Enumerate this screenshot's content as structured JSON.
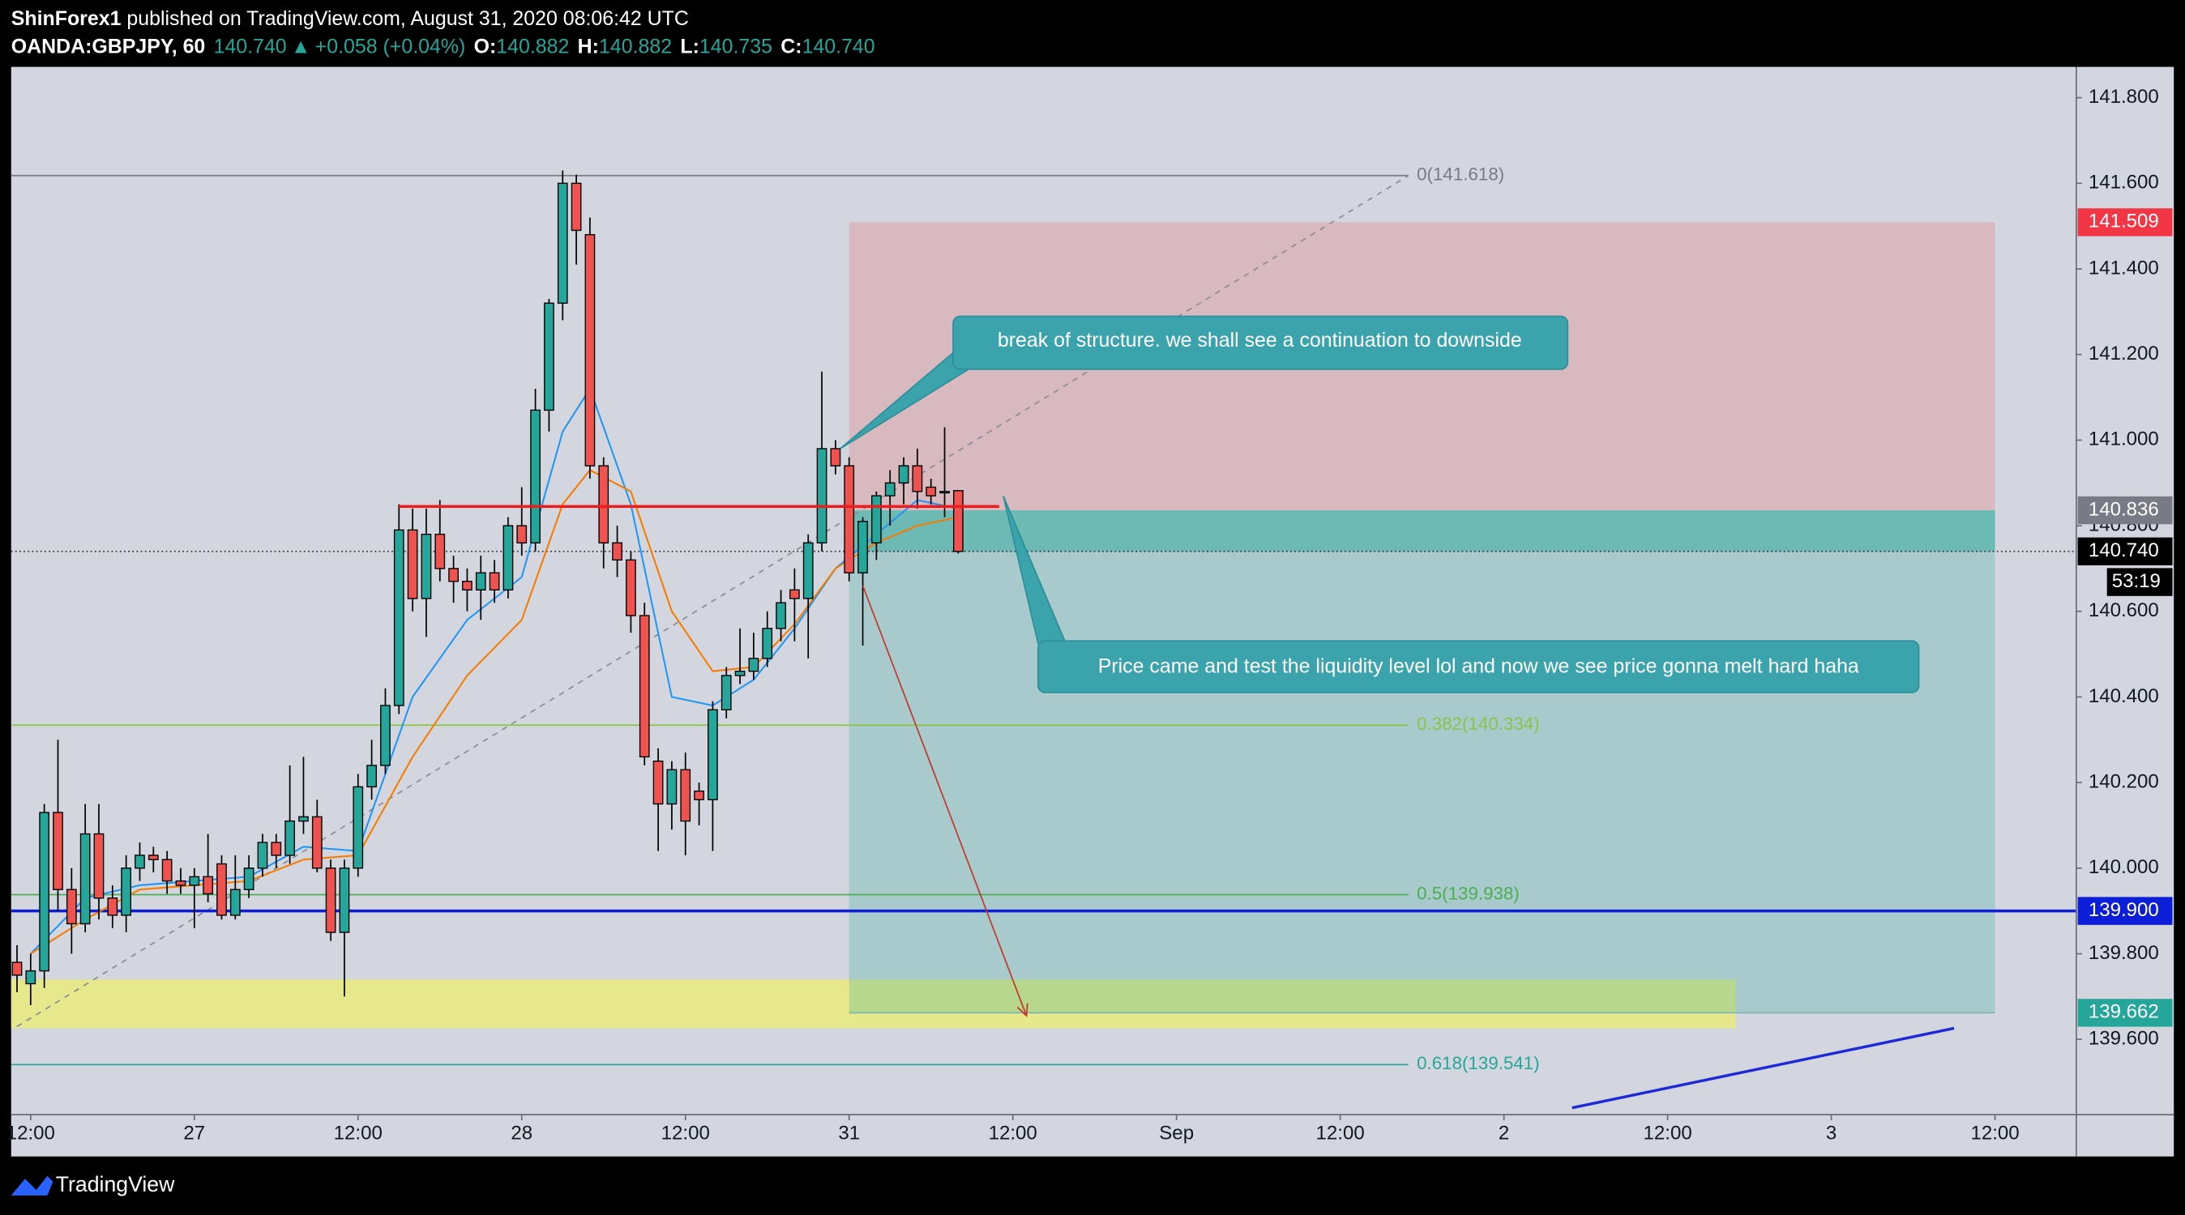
{
  "header": {
    "author": "ShinForex1",
    "published": "published on TradingView.com, August 31, 2020 08:06:42 UTC",
    "symbol": "OANDA:GBPJPY, 60",
    "price": "140.740",
    "arrow": "▲",
    "change": "+0.058 (+0.04%)",
    "ohlc": [
      {
        "label": "O:",
        "value": "140.882"
      },
      {
        "label": "H:",
        "value": "140.882"
      },
      {
        "label": "L:",
        "value": "140.735"
      },
      {
        "label": "C:",
        "value": "140.740"
      }
    ]
  },
  "brand": "TradingView",
  "chart_data": {
    "type": "candlestick",
    "up_color": "#26a69a",
    "down_color": "#ef5350",
    "xlim": [
      -1.43,
      149.96
    ],
    "ylim": [
      139.424,
      141.872
    ],
    "xticks": [
      {
        "value": 0,
        "label": "12:00"
      },
      {
        "value": 12,
        "label": "27"
      },
      {
        "value": 24,
        "label": "12:00"
      },
      {
        "value": 36,
        "label": "28"
      },
      {
        "value": 48,
        "label": "12:00"
      },
      {
        "value": 60,
        "label": "31"
      },
      {
        "value": 72,
        "label": "12:00"
      },
      {
        "value": 84,
        "label": "Sep"
      },
      {
        "value": 96,
        "label": "12:00"
      },
      {
        "value": 108,
        "label": "2"
      },
      {
        "value": 120,
        "label": "12:00"
      },
      {
        "value": 132,
        "label": "3"
      },
      {
        "value": 144,
        "label": "12:00"
      }
    ],
    "yticks": [
      {
        "value": 139.6,
        "label": "139.600"
      },
      {
        "value": 139.8,
        "label": "139.800"
      },
      {
        "value": 140,
        "label": "140.000"
      },
      {
        "value": 140.2,
        "label": "140.200"
      },
      {
        "value": 140.4,
        "label": "140.400"
      },
      {
        "value": 140.6,
        "label": "140.600"
      },
      {
        "value": 140.8,
        "label": "140.800"
      },
      {
        "value": 141,
        "label": "141.000"
      },
      {
        "value": 141.2,
        "label": "141.200"
      },
      {
        "value": 141.4,
        "label": "141.400"
      },
      {
        "value": 141.6,
        "label": "141.600"
      },
      {
        "value": 141.8,
        "label": "141.800"
      }
    ],
    "x": [
      -1,
      0,
      1,
      2,
      3,
      4,
      5,
      6,
      7,
      8,
      9,
      10,
      11,
      12,
      13,
      14,
      15,
      16,
      17,
      18,
      19,
      20,
      21,
      22,
      23,
      24,
      25,
      26,
      27,
      28,
      29,
      30,
      31,
      32,
      33,
      34,
      35,
      36,
      37,
      38,
      39,
      40,
      41,
      42,
      43,
      44,
      45,
      46,
      47,
      48,
      49,
      50,
      51,
      52,
      53,
      54,
      55,
      56,
      57,
      58,
      59,
      60,
      61,
      62,
      63,
      64,
      65,
      66,
      67,
      68
    ],
    "open": [
      139.78,
      139.73,
      139.76,
      140.13,
      139.95,
      139.87,
      140.08,
      139.93,
      139.89,
      140.0,
      140.03,
      140.02,
      139.97,
      139.96,
      139.98,
      140.01,
      139.89,
      139.95,
      140.0,
      140.06,
      140.03,
      140.11,
      140.12,
      140.0,
      139.85,
      140.0,
      140.19,
      140.24,
      140.38,
      140.79,
      140.63,
      140.78,
      140.7,
      140.67,
      140.65,
      140.69,
      140.65,
      140.8,
      140.76,
      141.07,
      141.32,
      141.6,
      141.48,
      140.94,
      140.76,
      140.72,
      140.59,
      140.25,
      140.15,
      140.23,
      140.18,
      140.16,
      140.37,
      140.45,
      140.46,
      140.49,
      140.56,
      140.65,
      140.63,
      140.76,
      140.98,
      140.94,
      140.69,
      140.76,
      140.87,
      140.9,
      140.94,
      140.89,
      140.88,
      140.882
    ],
    "high": [
      139.82,
      139.8,
      140.15,
      140.3,
      140.0,
      140.15,
      140.15,
      139.96,
      140.03,
      140.06,
      140.05,
      140.04,
      140.0,
      140.0,
      140.08,
      140.03,
      140.03,
      140.03,
      140.08,
      140.08,
      140.24,
      140.26,
      140.16,
      140.02,
      140.02,
      140.22,
      140.3,
      140.42,
      140.85,
      140.84,
      140.84,
      140.86,
      140.73,
      140.7,
      140.73,
      140.72,
      140.82,
      140.89,
      141.12,
      141.33,
      141.63,
      141.62,
      141.52,
      140.96,
      140.8,
      140.74,
      140.62,
      140.28,
      140.25,
      140.27,
      140.2,
      140.39,
      140.47,
      140.56,
      140.55,
      140.6,
      140.65,
      140.7,
      140.78,
      141.16,
      141.0,
      140.96,
      140.82,
      140.88,
      140.93,
      140.96,
      140.98,
      140.91,
      141.03,
      140.882
    ],
    "low": [
      139.71,
      139.68,
      139.72,
      139.9,
      139.8,
      139.85,
      139.88,
      139.86,
      139.85,
      139.97,
      139.99,
      139.94,
      139.94,
      139.86,
      139.92,
      139.88,
      139.88,
      139.93,
      139.98,
      140.0,
      140.01,
      140.08,
      139.99,
      139.83,
      139.7,
      139.98,
      140.16,
      140.22,
      140.36,
      140.6,
      140.54,
      140.67,
      140.62,
      140.6,
      140.58,
      140.62,
      140.63,
      140.73,
      140.74,
      141.02,
      141.28,
      141.41,
      140.91,
      140.7,
      140.68,
      140.55,
      140.24,
      140.04,
      140.09,
      140.03,
      140.1,
      140.04,
      140.35,
      140.43,
      140.44,
      140.47,
      140.53,
      140.53,
      140.49,
      140.74,
      140.92,
      140.67,
      140.52,
      140.72,
      140.8,
      140.85,
      140.84,
      140.85,
      140.82,
      140.735
    ],
    "close": [
      139.75,
      139.76,
      140.13,
      139.95,
      139.87,
      140.08,
      139.93,
      139.89,
      140.0,
      140.03,
      140.02,
      139.97,
      139.96,
      139.98,
      139.94,
      139.89,
      139.95,
      140.0,
      140.06,
      140.03,
      140.11,
      140.12,
      140.0,
      139.85,
      140.0,
      140.19,
      140.24,
      140.38,
      140.79,
      140.63,
      140.78,
      140.7,
      140.67,
      140.65,
      140.69,
      140.65,
      140.8,
      140.76,
      141.07,
      141.32,
      141.6,
      141.49,
      140.94,
      140.76,
      140.72,
      140.59,
      140.26,
      140.15,
      140.23,
      140.11,
      140.16,
      140.37,
      140.45,
      140.46,
      140.49,
      140.56,
      140.62,
      140.63,
      140.76,
      140.98,
      140.94,
      140.69,
      140.81,
      140.87,
      140.9,
      140.94,
      140.88,
      140.87,
      140.88,
      140.74
    ],
    "moving_averages": [
      {
        "color": "#2196f3",
        "x": [
          0,
          4,
          8,
          12,
          16,
          20,
          24,
          28,
          32,
          36,
          39,
          41,
          44,
          47,
          50,
          53,
          56,
          59,
          62,
          65,
          68
        ],
        "values": [
          139.8,
          139.93,
          139.96,
          139.97,
          139.98,
          140.05,
          140.04,
          140.4,
          140.58,
          140.68,
          141.02,
          141.12,
          140.85,
          140.4,
          140.38,
          140.44,
          140.56,
          140.7,
          140.78,
          140.86,
          140.84
        ]
      },
      {
        "color": "#f57c00",
        "x": [
          0,
          4,
          8,
          12,
          16,
          20,
          24,
          28,
          32,
          36,
          39,
          41,
          44,
          47,
          50,
          53,
          56,
          59,
          62,
          65,
          68
        ],
        "values": [
          139.8,
          139.88,
          139.95,
          139.96,
          139.97,
          140.02,
          140.03,
          140.26,
          140.45,
          140.58,
          140.85,
          140.93,
          140.88,
          140.6,
          140.46,
          140.47,
          140.57,
          140.7,
          140.76,
          140.8,
          140.82
        ]
      }
    ],
    "fib": {
      "x_end": 101,
      "trend": {
        "x": [
          -1,
          101
        ],
        "values": [
          139.63,
          141.618
        ]
      },
      "levels": [
        {
          "value": 141.618,
          "label": "0(141.618)",
          "color": "#787b86"
        },
        {
          "value": 140.334,
          "label": "0.382(140.334)",
          "color": "#8bc34a"
        },
        {
          "value": 139.938,
          "label": "0.5(139.938)",
          "color": "#4caf50"
        },
        {
          "value": 139.541,
          "label": "0.618(139.541)",
          "color": "#26a69a"
        }
      ]
    },
    "position": {
      "x_start": 60,
      "x_end": 144,
      "stop": {
        "value": 141.509,
        "label": "141.509"
      },
      "entry": {
        "value": 140.836,
        "label": "140.836"
      },
      "target": {
        "value": 139.662,
        "label": "139.662"
      }
    },
    "current_price": {
      "value": 140.74,
      "label": "140.740",
      "countdown": "53:19"
    },
    "level_line": {
      "x": [
        27,
        71
      ],
      "value": 140.845,
      "color": "#f01c1c"
    },
    "support_line": {
      "value": 139.9,
      "label": "139.900",
      "color": "#0d1ed8"
    },
    "zone": {
      "x_end": 125,
      "values": [
        139.626,
        139.74
      ],
      "color": "#eaea7d"
    },
    "trend_line": {
      "x": [
        113,
        141
      ],
      "values": [
        139.44,
        139.626
      ],
      "color": "#1e2ad8"
    },
    "arrow": {
      "x": [
        61,
        73
      ],
      "values": [
        140.66,
        139.655
      ],
      "color": "#c0392b"
    },
    "callouts": [
      "break of structure. we shall see a continuation to downside",
      "Price came and test the liquidity level lol and now we see price gonna  melt hard haha"
    ]
  }
}
